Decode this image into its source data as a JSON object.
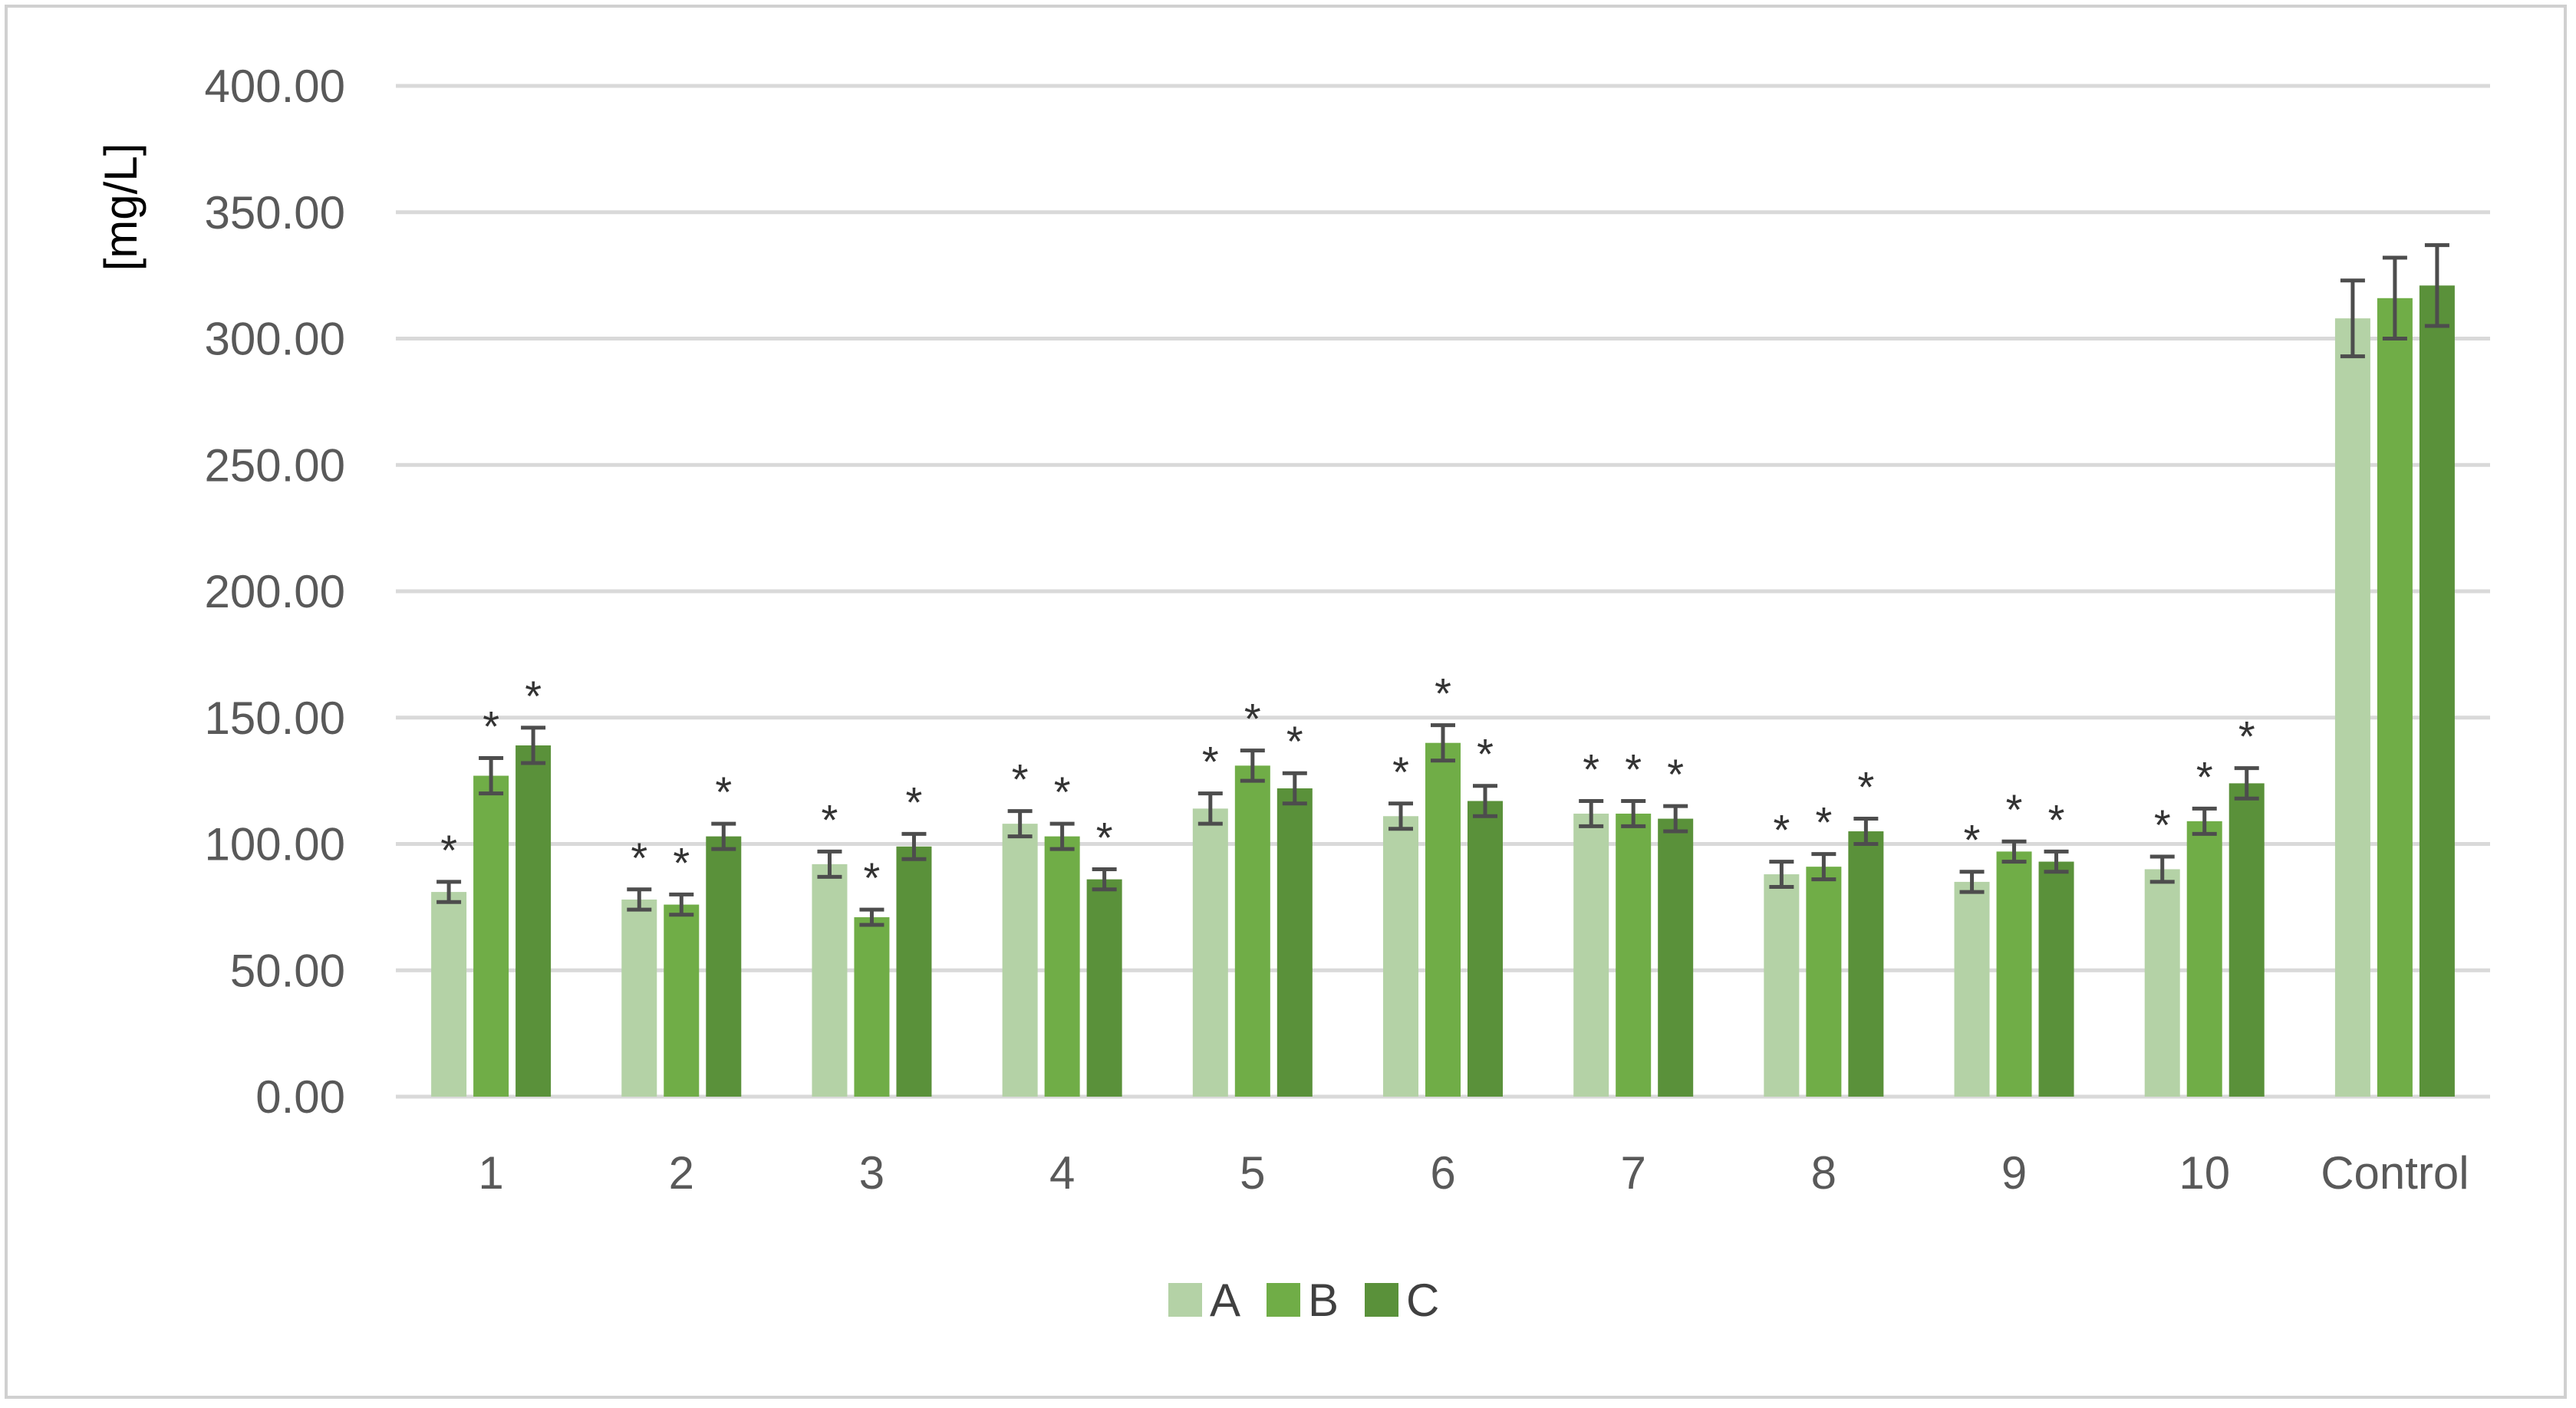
{
  "chart_data": {
    "type": "bar",
    "title": "",
    "xlabel": "",
    "ylabel": "[mg/L]",
    "ylim": [
      0,
      400
    ],
    "yticks": [
      0,
      50,
      100,
      150,
      200,
      250,
      300,
      350,
      400
    ],
    "ytick_labels": [
      "0.00",
      "50.00",
      "100.00",
      "150.00",
      "200.00",
      "250.00",
      "300.00",
      "350.00",
      "400.00"
    ],
    "grid": true,
    "legend_position": "bottom-center",
    "categories": [
      "1",
      "2",
      "3",
      "4",
      "5",
      "6",
      "7",
      "8",
      "9",
      "10",
      "Control"
    ],
    "series": [
      {
        "name": "A",
        "color": "#b4d2a6",
        "values": [
          81,
          78,
          92,
          108,
          114,
          111,
          112,
          88,
          85,
          90,
          308
        ],
        "errors": [
          4,
          4,
          5,
          5,
          6,
          5,
          5,
          5,
          4,
          5,
          15
        ],
        "significant": [
          true,
          true,
          true,
          true,
          true,
          true,
          true,
          true,
          true,
          true,
          false
        ]
      },
      {
        "name": "B",
        "color": "#70ad47",
        "values": [
          127,
          76,
          71,
          103,
          131,
          140,
          112,
          91,
          97,
          109,
          316
        ],
        "errors": [
          7,
          4,
          3,
          5,
          6,
          7,
          5,
          5,
          4,
          5,
          16
        ],
        "significant": [
          true,
          true,
          true,
          true,
          true,
          true,
          true,
          true,
          true,
          true,
          false
        ]
      },
      {
        "name": "C",
        "color": "#5a913a",
        "values": [
          139,
          103,
          99,
          86,
          122,
          117,
          110,
          105,
          93,
          124,
          321
        ],
        "errors": [
          7,
          5,
          5,
          4,
          6,
          6,
          5,
          5,
          4,
          6,
          16
        ],
        "significant": [
          true,
          true,
          true,
          true,
          true,
          true,
          true,
          true,
          true,
          true,
          false
        ]
      }
    ],
    "annotation_symbol": "*"
  },
  "colors": {
    "grid": "#d9d9d9",
    "error_bar": "#4d4d4d",
    "frame": "#d0d0d0"
  }
}
